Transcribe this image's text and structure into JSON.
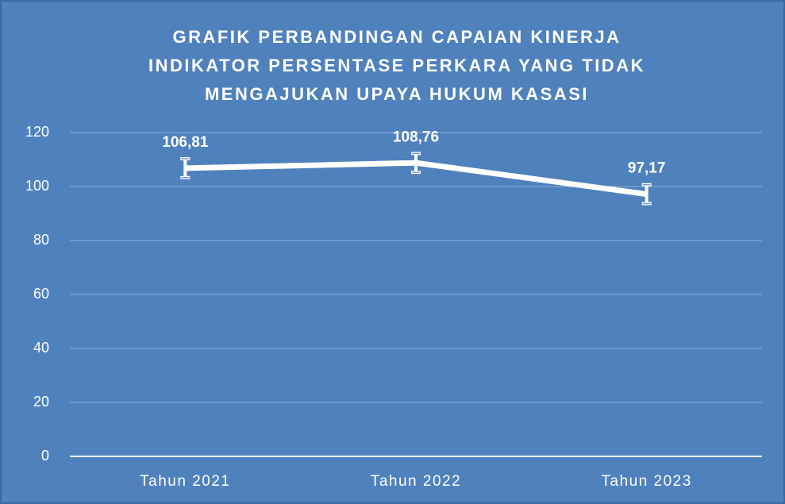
{
  "chart_data": {
    "type": "line",
    "title": [
      "GRAFIK PERBANDINGAN CAPAIAN KINERJA",
      "INDIKATOR PERSENTASE PERKARA YANG TIDAK",
      "MENGAJUKAN UPAYA HUKUM KASASI"
    ],
    "categories": [
      "Tahun 2021",
      "Tahun 2022",
      "Tahun 2023"
    ],
    "values": [
      106.81,
      108.76,
      97.17
    ],
    "value_labels": [
      "106,81",
      "108,76",
      "97,17"
    ],
    "errors": [
      3.5,
      3.5,
      3.5
    ],
    "color": "#ffffff",
    "ylim": [
      0,
      120
    ],
    "yticks": [
      0,
      20,
      40,
      60,
      80,
      100,
      120
    ],
    "grid": true,
    "drop_lines": true
  }
}
